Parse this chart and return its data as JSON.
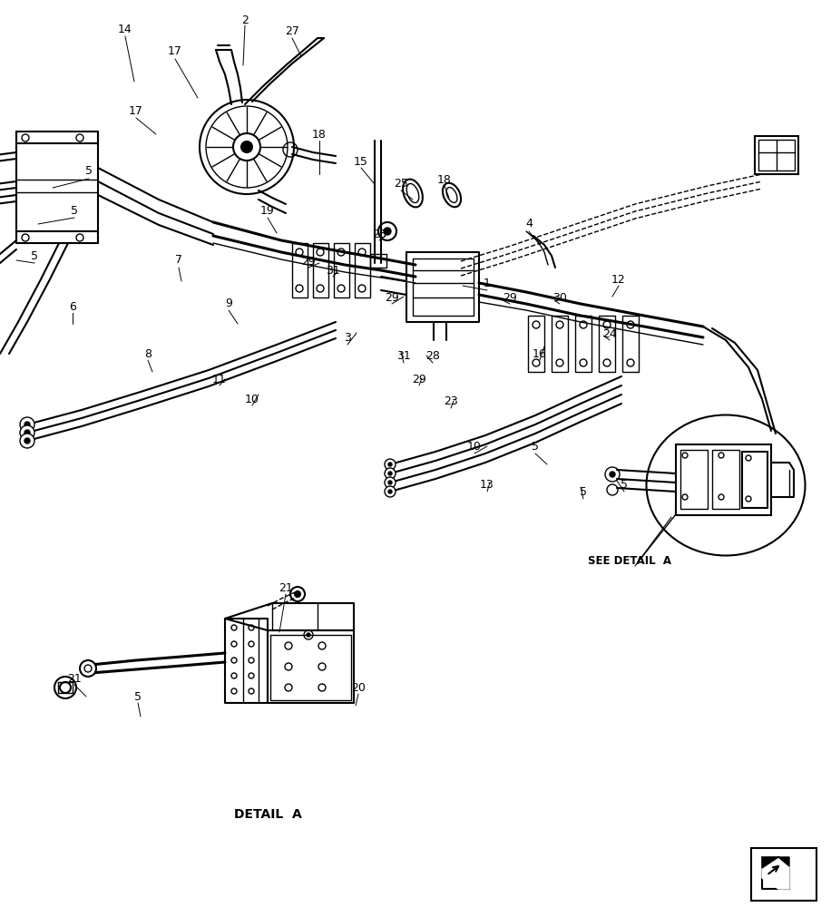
{
  "background_color": "#ffffff",
  "detail_a_label": "DETAIL  A",
  "see_detail_label": "SEE DETAIL  A—",
  "fig_width": 9.16,
  "fig_height": 10.0,
  "dpi": 100,
  "part_labels": [
    [
      "1",
      537,
      312
    ],
    [
      "2",
      270,
      22
    ],
    [
      "3",
      383,
      372
    ],
    [
      "4",
      583,
      247
    ],
    [
      "5",
      38,
      282
    ],
    [
      "5",
      82,
      232
    ],
    [
      "5",
      98,
      188
    ],
    [
      "5",
      590,
      492
    ],
    [
      "5",
      643,
      543
    ],
    [
      "5",
      688,
      535
    ],
    [
      "6",
      80,
      338
    ],
    [
      "7",
      197,
      287
    ],
    [
      "8",
      163,
      390
    ],
    [
      "9",
      252,
      335
    ],
    [
      "10",
      278,
      440
    ],
    [
      "10",
      523,
      493
    ],
    [
      "11",
      242,
      418
    ],
    [
      "12",
      682,
      308
    ],
    [
      "13",
      537,
      535
    ],
    [
      "14",
      138,
      32
    ],
    [
      "15",
      398,
      178
    ],
    [
      "16",
      595,
      390
    ],
    [
      "17",
      193,
      57
    ],
    [
      "17",
      150,
      122
    ],
    [
      "18",
      352,
      148
    ],
    [
      "18",
      490,
      198
    ],
    [
      "19",
      295,
      233
    ],
    [
      "20",
      395,
      758
    ],
    [
      "21",
      315,
      648
    ],
    [
      "21",
      82,
      748
    ],
    [
      "23",
      497,
      443
    ],
    [
      "24",
      672,
      368
    ],
    [
      "25",
      442,
      203
    ],
    [
      "26",
      418,
      258
    ],
    [
      "27",
      322,
      35
    ],
    [
      "28",
      477,
      393
    ],
    [
      "29",
      340,
      288
    ],
    [
      "29",
      432,
      328
    ],
    [
      "29",
      462,
      418
    ],
    [
      "29",
      562,
      328
    ],
    [
      "30",
      617,
      328
    ],
    [
      "31",
      367,
      298
    ],
    [
      "31",
      445,
      393
    ],
    [
      "5",
      152,
      768
    ]
  ],
  "leader_lines": [
    [
      270,
      28,
      268,
      72
    ],
    [
      322,
      42,
      332,
      62
    ],
    [
      138,
      40,
      148,
      90
    ],
    [
      193,
      65,
      218,
      108
    ],
    [
      150,
      130,
      172,
      148
    ],
    [
      352,
      155,
      352,
      192
    ],
    [
      490,
      205,
      495,
      218
    ],
    [
      398,
      185,
      412,
      202
    ],
    [
      295,
      240,
      305,
      257
    ],
    [
      442,
      210,
      455,
      220
    ],
    [
      418,
      265,
      425,
      260
    ],
    [
      583,
      255,
      595,
      270
    ],
    [
      537,
      320,
      510,
      315
    ],
    [
      383,
      380,
      393,
      367
    ],
    [
      445,
      400,
      442,
      388
    ],
    [
      367,
      305,
      372,
      300
    ],
    [
      477,
      400,
      470,
      392
    ],
    [
      340,
      295,
      352,
      290
    ],
    [
      432,
      335,
      445,
      327
    ],
    [
      462,
      425,
      465,
      417
    ],
    [
      562,
      335,
      552,
      330
    ],
    [
      617,
      335,
      612,
      332
    ],
    [
      672,
      375,
      665,
      370
    ],
    [
      595,
      397,
      600,
      382
    ],
    [
      682,
      315,
      675,
      327
    ],
    [
      497,
      450,
      500,
      442
    ],
    [
      80,
      345,
      80,
      357
    ],
    [
      197,
      295,
      200,
      310
    ],
    [
      163,
      397,
      168,
      410
    ],
    [
      252,
      342,
      262,
      357
    ],
    [
      278,
      447,
      285,
      435
    ],
    [
      523,
      500,
      537,
      492
    ],
    [
      242,
      425,
      248,
      418
    ],
    [
      537,
      542,
      540,
      532
    ],
    [
      38,
      290,
      18,
      287
    ],
    [
      82,
      240,
      42,
      247
    ],
    [
      98,
      197,
      58,
      207
    ],
    [
      590,
      500,
      603,
      512
    ],
    [
      643,
      550,
      640,
      537
    ],
    [
      688,
      542,
      680,
      530
    ],
    [
      315,
      655,
      308,
      697
    ],
    [
      82,
      755,
      95,
      768
    ],
    [
      395,
      765,
      392,
      778
    ],
    [
      152,
      775,
      155,
      790
    ]
  ]
}
